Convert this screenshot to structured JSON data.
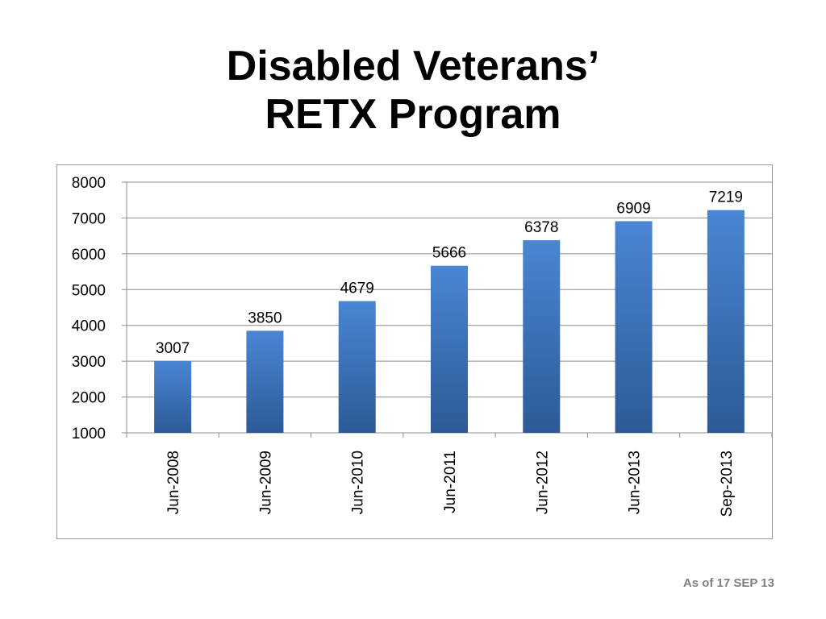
{
  "slide": {
    "title_line1": "Disabled Veterans’",
    "title_line2": "RETX Program",
    "footnote": "As of 17 SEP 13"
  },
  "colors": {
    "bar_top": "#4a86d4",
    "bar_bottom": "#2c5a96",
    "grid": "#8c8c8c",
    "axis": "#8c8c8c",
    "footnote": "#7f7f7f"
  },
  "chart_data": {
    "type": "bar",
    "title": "",
    "xlabel": "",
    "ylabel": "",
    "categories": [
      "Jun-2008",
      "Jun-2009",
      "Jun-2010",
      "Jun-2011",
      "Jun-2012",
      "Jun-2013",
      "Sep-2013"
    ],
    "values": [
      3007,
      3850,
      4679,
      5666,
      6378,
      6909,
      7219
    ],
    "data_labels": [
      "3007",
      "3850",
      "4679",
      "5666",
      "6378",
      "6909",
      "7219"
    ],
    "ylim": [
      1000,
      8000
    ],
    "yticks": [
      1000,
      2000,
      3000,
      4000,
      5000,
      6000,
      7000,
      8000
    ],
    "ytick_labels": [
      "1000",
      "2000",
      "3000",
      "4000",
      "5000",
      "6000",
      "7000",
      "8000"
    ],
    "grid": true,
    "legend": "none",
    "x_tick_rotation": "vertical"
  }
}
